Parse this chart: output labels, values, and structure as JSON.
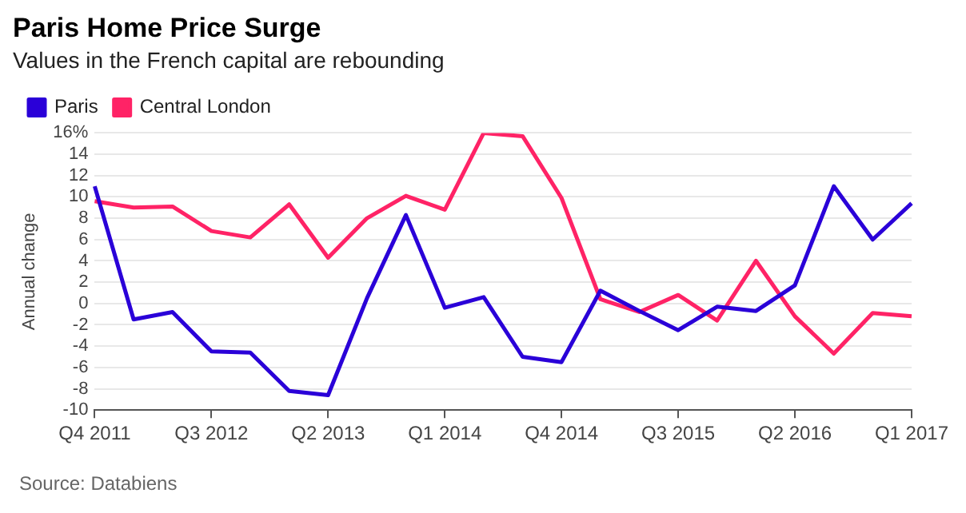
{
  "chart_data": {
    "type": "line",
    "title": "Paris Home Price Surge",
    "subtitle": "Values in the French capital are rebounding",
    "ylabel": "Annual change",
    "categories": [
      "Q4 2011",
      null,
      null,
      "Q3 2012",
      null,
      null,
      "Q2 2013",
      null,
      null,
      "Q1 2014",
      null,
      null,
      "Q4 2014",
      null,
      null,
      "Q3 2015",
      null,
      null,
      "Q2 2016",
      null,
      null,
      "Q1 2017"
    ],
    "series": [
      {
        "name": "Paris",
        "color": "#2a00d8",
        "values": [
          11,
          -1.5,
          -0.8,
          -4.5,
          -4.6,
          -8.2,
          -8.6,
          0.5,
          8.3,
          -0.4,
          0.6,
          -5,
          -5.5,
          1.2,
          -0.7,
          -2.5,
          -0.3,
          -0.7,
          1.7,
          11,
          6,
          9.4
        ]
      },
      {
        "name": "Central London",
        "color": "#ff2366",
        "values": [
          9.6,
          9,
          9.1,
          6.8,
          6.2,
          9.3,
          4.3,
          8,
          10.1,
          8.8,
          16,
          15.7,
          9.9,
          0.4,
          -0.8,
          0.8,
          -1.6,
          4,
          -1.2,
          -4.7,
          -0.9,
          -1.2
        ]
      }
    ],
    "ylim": [
      -10,
      16
    ],
    "yticks": [
      -10,
      -8,
      -6,
      -4,
      -2,
      0,
      2,
      4,
      6,
      8,
      10,
      12,
      14,
      {
        "value": 16,
        "label": "16%"
      }
    ],
    "grid": "y",
    "legend": "top left",
    "marker": "none",
    "line_style": "solid",
    "annotations": [
      "Source: Databiens"
    ]
  }
}
